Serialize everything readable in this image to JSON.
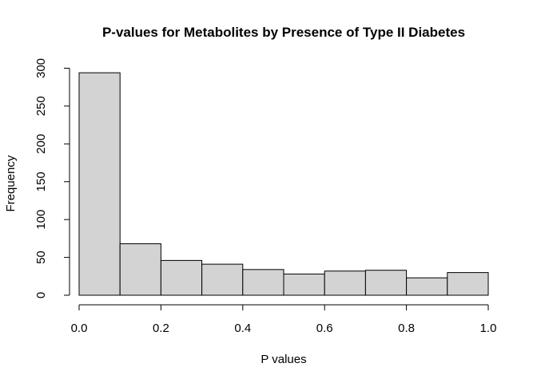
{
  "chart_data": {
    "type": "bar",
    "title": "P-values for Metabolites by Presence of Type II Diabetes",
    "xlabel": "P values",
    "ylabel": "Frequency",
    "bin_edges": [
      0.0,
      0.1,
      0.2,
      0.3,
      0.4,
      0.5,
      0.6,
      0.7,
      0.8,
      0.9,
      1.0
    ],
    "values": [
      294,
      68,
      46,
      41,
      34,
      28,
      32,
      33,
      23,
      30
    ],
    "xlim": [
      0,
      1
    ],
    "ylim": [
      0,
      300
    ],
    "x_ticks": [
      "0.0",
      "0.2",
      "0.4",
      "0.6",
      "0.8",
      "1.0"
    ],
    "y_ticks": [
      "0",
      "50",
      "100",
      "150",
      "200",
      "250",
      "300"
    ],
    "bar_fill": "#d3d3d3",
    "grid": false,
    "legend": "none"
  }
}
